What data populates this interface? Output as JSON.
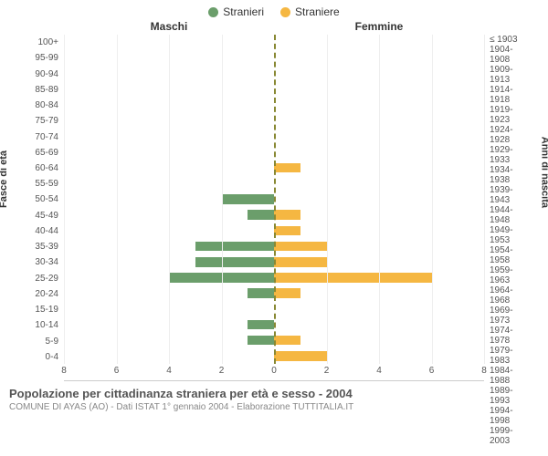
{
  "chart": {
    "type": "population-pyramid",
    "legend": {
      "male": {
        "label": "Stranieri",
        "color": "#6b9e6b"
      },
      "female": {
        "label": "Straniere",
        "color": "#f5b742"
      }
    },
    "column_headers": {
      "left": "Maschi",
      "right": "Femmine"
    },
    "y_axis_left_label": "Fasce di età",
    "y_axis_right_label": "Anni di nascita",
    "x_axis": {
      "max": 8,
      "ticks": [
        0,
        2,
        4,
        6,
        8
      ]
    },
    "grid_color": "#eeeeee",
    "center_line_color": "#888833",
    "background_color": "#ffffff",
    "label_fontsize": 10,
    "rows": [
      {
        "age": "100+",
        "birth": "≤ 1903",
        "m": 0,
        "f": 0
      },
      {
        "age": "95-99",
        "birth": "1904-1908",
        "m": 0,
        "f": 0
      },
      {
        "age": "90-94",
        "birth": "1909-1913",
        "m": 0,
        "f": 0
      },
      {
        "age": "85-89",
        "birth": "1914-1918",
        "m": 0,
        "f": 0
      },
      {
        "age": "80-84",
        "birth": "1919-1923",
        "m": 0,
        "f": 0
      },
      {
        "age": "75-79",
        "birth": "1924-1928",
        "m": 0,
        "f": 0
      },
      {
        "age": "70-74",
        "birth": "1929-1933",
        "m": 0,
        "f": 0
      },
      {
        "age": "65-69",
        "birth": "1934-1938",
        "m": 0,
        "f": 0
      },
      {
        "age": "60-64",
        "birth": "1939-1943",
        "m": 0,
        "f": 1
      },
      {
        "age": "55-59",
        "birth": "1944-1948",
        "m": 0,
        "f": 0
      },
      {
        "age": "50-54",
        "birth": "1949-1953",
        "m": 2,
        "f": 0
      },
      {
        "age": "45-49",
        "birth": "1954-1958",
        "m": 1,
        "f": 1
      },
      {
        "age": "40-44",
        "birth": "1959-1963",
        "m": 0,
        "f": 1
      },
      {
        "age": "35-39",
        "birth": "1964-1968",
        "m": 3,
        "f": 2
      },
      {
        "age": "30-34",
        "birth": "1969-1973",
        "m": 3,
        "f": 2
      },
      {
        "age": "25-29",
        "birth": "1974-1978",
        "m": 4,
        "f": 6
      },
      {
        "age": "20-24",
        "birth": "1979-1983",
        "m": 1,
        "f": 1
      },
      {
        "age": "15-19",
        "birth": "1984-1988",
        "m": 0,
        "f": 0
      },
      {
        "age": "10-14",
        "birth": "1989-1993",
        "m": 1,
        "f": 0
      },
      {
        "age": "5-9",
        "birth": "1994-1998",
        "m": 1,
        "f": 1
      },
      {
        "age": "0-4",
        "birth": "1999-2003",
        "m": 0,
        "f": 2
      }
    ]
  },
  "footer": {
    "title": "Popolazione per cittadinanza straniera per età e sesso - 2004",
    "subtitle": "COMUNE DI AYAS (AO) - Dati ISTAT 1° gennaio 2004 - Elaborazione TUTTITALIA.IT"
  }
}
